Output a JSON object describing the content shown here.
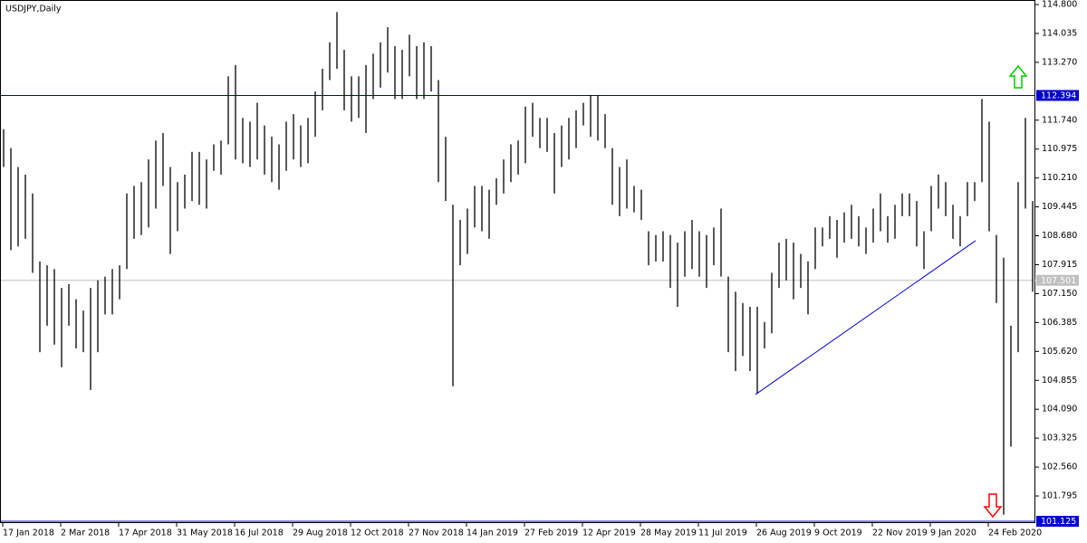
{
  "chart_data": {
    "type": "range",
    "title": "USDJPY,Daily",
    "color": "#000000",
    "categories": [
      "17 Jan 2018",
      null,
      null,
      null,
      null,
      null,
      null,
      null,
      "2 Mar 2018",
      null,
      null,
      null,
      null,
      null,
      null,
      null,
      "17 Apr 2018",
      null,
      null,
      null,
      null,
      null,
      null,
      null,
      "31 May 2018",
      null,
      null,
      null,
      null,
      null,
      null,
      null,
      "16 Jul 2018",
      null,
      null,
      null,
      null,
      null,
      null,
      null,
      "29 Aug 2018",
      null,
      null,
      null,
      null,
      null,
      null,
      null,
      "12 Oct 2018",
      null,
      null,
      null,
      null,
      null,
      null,
      null,
      "27 Nov 2018",
      null,
      null,
      null,
      null,
      null,
      null,
      null,
      "14 Jan 2019",
      null,
      null,
      null,
      null,
      null,
      null,
      null,
      "27 Feb 2019",
      null,
      null,
      null,
      null,
      null,
      null,
      null,
      "12 Apr 2019",
      null,
      null,
      null,
      null,
      null,
      null,
      null,
      "28 May 2019",
      null,
      null,
      null,
      null,
      null,
      null,
      null,
      "11 Jul 2019",
      null,
      null,
      null,
      null,
      null,
      null,
      null,
      "26 Aug 2019",
      null,
      null,
      null,
      null,
      null,
      null,
      null,
      "9 Oct 2019",
      null,
      null,
      null,
      null,
      null,
      null,
      null,
      "22 Nov 2019",
      null,
      null,
      null,
      null,
      null,
      null,
      null,
      "9 Jan 2020",
      null,
      null,
      null,
      null,
      null,
      null,
      null,
      "24 Feb 2020",
      null,
      null,
      null,
      null,
      null,
      null
    ],
    "high": [
      111.5,
      111.0,
      110.5,
      110.3,
      109.8,
      108.0,
      107.9,
      107.8,
      107.3,
      107.4,
      107.0,
      106.7,
      107.3,
      107.5,
      107.6,
      107.8,
      107.9,
      109.8,
      110.0,
      110.1,
      110.7,
      111.2,
      111.4,
      110.5,
      110.1,
      110.3,
      110.9,
      110.9,
      110.7,
      111.1,
      111.2,
      112.9,
      113.2,
      111.8,
      111.7,
      112.2,
      111.6,
      111.3,
      111.1,
      111.7,
      111.9,
      111.6,
      111.8,
      112.5,
      113.1,
      113.8,
      114.6,
      113.6,
      112.9,
      112.9,
      113.2,
      113.5,
      113.8,
      114.2,
      113.7,
      113.6,
      114.0,
      113.7,
      113.8,
      113.7,
      112.8,
      111.3,
      109.5,
      109.1,
      109.4,
      110.0,
      110.0,
      109.9,
      110.2,
      110.7,
      111.1,
      111.2,
      112.1,
      112.2,
      111.8,
      111.8,
      111.4,
      111.6,
      111.8,
      112.0,
      112.2,
      112.4,
      112.4,
      111.9,
      111.0,
      110.5,
      110.7,
      110.0,
      109.9,
      108.8,
      108.7,
      108.8,
      108.7,
      108.5,
      108.8,
      109.1,
      108.8,
      108.7,
      108.9,
      109.4,
      107.6,
      107.2,
      106.9,
      106.8,
      106.8,
      106.4,
      107.7,
      108.5,
      108.6,
      108.5,
      108.2,
      108.0,
      108.9,
      108.9,
      109.2,
      109.1,
      109.3,
      109.5,
      109.2,
      108.9,
      109.4,
      109.8,
      109.2,
      109.5,
      109.8,
      109.8,
      109.6,
      108.8,
      110.0,
      110.3,
      110.1,
      109.5,
      109.2,
      110.1,
      110.1,
      112.3,
      111.7,
      108.7,
      108.1,
      106.3,
      110.1,
      111.8,
      109.6
    ],
    "low": [
      110.5,
      108.3,
      108.4,
      108.6,
      107.7,
      105.6,
      106.3,
      105.8,
      105.2,
      106.3,
      105.7,
      105.6,
      104.6,
      105.6,
      106.6,
      106.6,
      107.0,
      107.8,
      108.6,
      108.7,
      108.9,
      109.4,
      110.0,
      108.2,
      108.8,
      109.4,
      109.6,
      109.5,
      109.4,
      110.4,
      110.3,
      111.1,
      110.7,
      110.6,
      110.5,
      110.7,
      110.3,
      110.1,
      109.9,
      110.4,
      110.7,
      110.5,
      110.6,
      111.3,
      112.0,
      112.8,
      113.1,
      112.0,
      111.7,
      111.8,
      111.4,
      112.3,
      112.6,
      113.0,
      112.3,
      112.3,
      112.9,
      112.3,
      112.3,
      112.5,
      110.1,
      109.6,
      104.7,
      107.9,
      108.2,
      108.9,
      108.8,
      108.6,
      109.5,
      109.8,
      110.1,
      110.3,
      110.6,
      111.3,
      111.0,
      110.9,
      109.8,
      110.5,
      110.7,
      111.0,
      111.6,
      111.3,
      111.2,
      111.0,
      109.5,
      109.2,
      109.4,
      109.3,
      109.1,
      107.9,
      108.0,
      108.0,
      107.3,
      106.8,
      107.6,
      107.8,
      107.6,
      107.3,
      107.9,
      107.6,
      105.6,
      105.1,
      105.5,
      105.1,
      104.5,
      105.7,
      106.1,
      107.3,
      107.5,
      107.0,
      107.3,
      106.6,
      107.8,
      108.4,
      108.6,
      108.1,
      108.5,
      108.6,
      108.4,
      108.2,
      108.5,
      108.8,
      108.5,
      108.6,
      109.2,
      109.2,
      108.4,
      107.8,
      108.8,
      109.4,
      109.2,
      108.6,
      108.4,
      109.2,
      109.6,
      110.1,
      108.8,
      106.9,
      101.3,
      103.1,
      105.6,
      109.4,
      107.2
    ],
    "ylim": [
      101.077,
      114.872
    ],
    "yticks": [
      {
        "value": 114.8,
        "label": "114.800"
      },
      {
        "value": 114.035,
        "label": "114.035"
      },
      {
        "value": 113.27,
        "label": "113.270"
      },
      {
        "value": 111.74,
        "label": "111.740"
      },
      {
        "value": 110.975,
        "label": "110.975"
      },
      {
        "value": 110.21,
        "label": "110.210"
      },
      {
        "value": 109.445,
        "label": "109.445"
      },
      {
        "value": 108.68,
        "label": "108.680"
      },
      {
        "value": 107.915,
        "label": "107.915"
      },
      {
        "value": 107.15,
        "label": "107.150"
      },
      {
        "value": 106.385,
        "label": "106.385"
      },
      {
        "value": 105.62,
        "label": "105.620"
      },
      {
        "value": 104.855,
        "label": "104.855"
      },
      {
        "value": 104.09,
        "label": "104.090"
      },
      {
        "value": 103.325,
        "label": "103.325"
      },
      {
        "value": 102.56,
        "label": "102.560"
      },
      {
        "value": 101.795,
        "label": "101.795"
      }
    ],
    "levels": [
      {
        "value": 112.394,
        "label": "112.394",
        "color": "#0000cc"
      },
      {
        "value": 107.501,
        "label": "107.501",
        "color": "#c0c0c0"
      },
      {
        "value": 101.125,
        "label": "101.125",
        "color": "#0000cc"
      }
    ],
    "trendline": {
      "values": [
        104.48,
        108.55
      ],
      "color": "#0000cc"
    }
  }
}
